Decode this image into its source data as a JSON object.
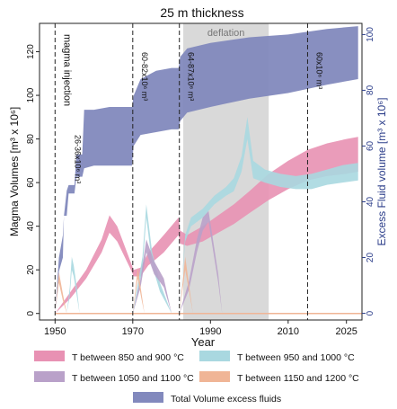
{
  "chart_data": {
    "type": "area",
    "title": "25 m thickness",
    "xlabel": "Year",
    "ylabel_left": "Magma Volumes  [m³ x 10⁶]",
    "ylabel_right": "Excess Fluid volume  [m³ x 10⁶]",
    "xlim": [
      1946,
      2029
    ],
    "ylim_left": [
      -3,
      133
    ],
    "ylim_right": [
      -2.4,
      104
    ],
    "x_ticks": [
      1950,
      1970,
      1990,
      2010,
      2025
    ],
    "y_ticks_left": [
      0,
      20,
      40,
      60,
      80,
      100,
      120
    ],
    "y_ticks_right": [
      0,
      20,
      40,
      60,
      80,
      100
    ],
    "deflation": {
      "label": "deflation",
      "x_start": 1983,
      "x_end": 2005
    },
    "events": [
      {
        "year": 1950,
        "labels": [
          "magma injection",
          "26-36x10⁶ m³"
        ]
      },
      {
        "year": 1970,
        "labels": [
          "60-82x10⁶ m³"
        ]
      },
      {
        "year": 1982,
        "labels": [
          "64-87x10⁶ m³"
        ]
      },
      {
        "year": 2015,
        "labels": [
          "60x10⁶ m³"
        ]
      }
    ],
    "series": [
      {
        "name": "T between 850 and 900 °C",
        "color": "#e891b3",
        "axis": "left",
        "x": [
          1950,
          1954,
          1958,
          1962,
          1964,
          1966,
          1969.8,
          1970.2,
          1972,
          1974,
          1976,
          1978,
          1981.8,
          1982.2,
          1984,
          1988,
          1992,
          1996,
          2000,
          2005,
          2010,
          2015,
          2020,
          2025,
          2028
        ],
        "low": [
          0,
          7,
          16,
          28,
          37,
          33,
          19,
          17,
          17,
          22,
          25,
          28,
          36,
          32,
          31,
          33,
          37,
          41,
          46,
          52,
          57,
          61,
          63,
          64,
          65
        ],
        "high": [
          0,
          10,
          20,
          34,
          45,
          40,
          22,
          20,
          21,
          28,
          32,
          36,
          44,
          38,
          36,
          40,
          45,
          50,
          56,
          64,
          70,
          75,
          78,
          80,
          81
        ]
      },
      {
        "name": "T between 950 and 1000 °C",
        "color": "#a9d8e0",
        "axis": "left",
        "x": [
          1953,
          1953.8,
          1954.3,
          1954.8,
          1955.6,
          1956.3,
          1970,
          1972.5,
          1973.5,
          1975,
          1977,
          1980,
          1982,
          1983.5,
          1985,
          1988,
          1991,
          1994,
          1996,
          1998,
          1999.5,
          2001,
          2004,
          2008,
          2012,
          2016,
          2020,
          2024,
          2028
        ],
        "low": [
          0,
          8,
          20,
          17,
          8,
          0,
          0,
          20,
          44,
          22,
          10,
          0,
          0,
          33,
          40,
          44,
          50,
          54,
          56,
          65,
          80,
          62,
          60,
          58,
          57,
          57,
          59,
          60,
          61
        ],
        "high": [
          0,
          12,
          26,
          22,
          12,
          0,
          0,
          26,
          50,
          28,
          14,
          0,
          0,
          36,
          44,
          48,
          54,
          58,
          62,
          72,
          90,
          70,
          66,
          64,
          63,
          64,
          66,
          68,
          69
        ]
      },
      {
        "name": "T between 1050 and 1100 °C",
        "color": "#b9a1c9",
        "axis": "left",
        "x": [
          1970,
          1972,
          1973.5,
          1975.5,
          1978,
          1980,
          1982,
          1984.5,
          1986.5,
          1988,
          1989.5,
          1992,
          1993
        ],
        "low": [
          0,
          12,
          28,
          18,
          12,
          0,
          0,
          11,
          28,
          38,
          42,
          14,
          0
        ],
        "high": [
          0,
          16,
          34,
          24,
          16,
          0,
          0,
          15,
          34,
          44,
          47,
          18,
          0
        ]
      },
      {
        "name": "T between 1150 and 1200 °C",
        "color": "#f0b596",
        "axis": "left",
        "x": [
          1950,
          1951,
          1952,
          1953,
          1970,
          1971.3,
          1972.2,
          1973,
          1982,
          1983.5,
          1984.5,
          1985.5
        ],
        "low": [
          0,
          14,
          6,
          0,
          0,
          16,
          7,
          0,
          0,
          20,
          10,
          0
        ],
        "high": [
          0,
          19,
          9,
          0,
          0,
          21,
          10,
          0,
          0,
          26,
          13,
          0
        ]
      },
      {
        "name": "Total Volume excess fluids",
        "color": "#8289bd",
        "axis": "right",
        "x": [
          1950,
          1951,
          1952,
          1952.3,
          1953,
          1953.5,
          1955,
          1955.5,
          1957,
          1957.5,
          1960,
          1964,
          1968,
          1969.8,
          1970.2,
          1972,
          1976,
          1980,
          1981.8,
          1982.2,
          1984,
          1990,
          2000,
          2010,
          2020,
          2028
        ],
        "low": [
          0,
          15,
          20,
          35,
          35,
          43,
          43,
          49,
          49,
          52,
          53,
          53,
          53,
          53,
          60,
          64,
          65,
          66,
          66,
          69,
          72,
          74,
          77,
          79,
          82,
          84
        ],
        "high": [
          0,
          20,
          28,
          35,
          44,
          46,
          46,
          57,
          57,
          73,
          73,
          74,
          74,
          74,
          78,
          84,
          87,
          88,
          88,
          92,
          95,
          97,
          99,
          100,
          102,
          103
        ]
      }
    ]
  }
}
